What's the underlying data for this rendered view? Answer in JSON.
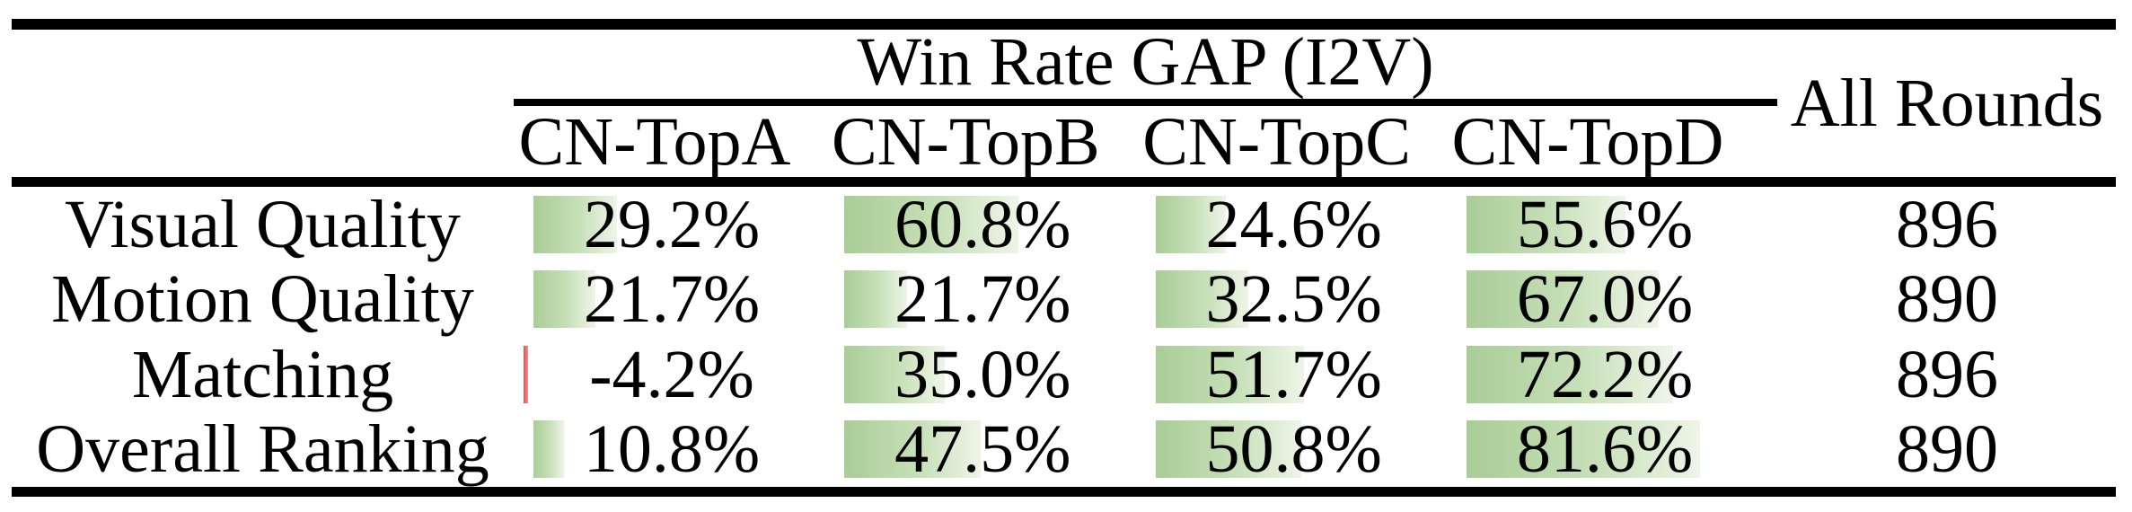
{
  "table": {
    "group_header": "Win Rate GAP (I2V)",
    "all_rounds_header": "All Rounds",
    "columns": [
      "CN-TopA",
      "CN-TopB",
      "CN-TopC",
      "CN-TopD"
    ],
    "rows": [
      {
        "label": "Visual Quality",
        "values": [
          29.2,
          60.8,
          24.6,
          55.6
        ],
        "display": [
          "29.2%",
          "60.8%",
          "24.6%",
          "55.6%"
        ],
        "all_rounds": "896"
      },
      {
        "label": "Motion Quality",
        "values": [
          21.7,
          21.7,
          32.5,
          67.0
        ],
        "display": [
          "21.7%",
          "21.7%",
          "32.5%",
          "67.0%"
        ],
        "all_rounds": "890"
      },
      {
        "label": "Matching",
        "values": [
          -4.2,
          35.0,
          51.7,
          72.2
        ],
        "display": [
          "-4.2%",
          "35.0%",
          "51.7%",
          "72.2%"
        ],
        "all_rounds": "896"
      },
      {
        "label": "Overall Ranking",
        "values": [
          10.8,
          47.5,
          50.8,
          81.6
        ],
        "display": [
          "10.8%",
          "47.5%",
          "50.8%",
          "81.6%"
        ],
        "all_rounds": "890"
      }
    ],
    "colors": {
      "bar_positive_start": "#a9cd97",
      "bar_positive_end": "#eef5e8",
      "bar_negative": "#f06060",
      "rule": "#000000",
      "text": "#000000"
    }
  },
  "chart_data": {
    "type": "table",
    "title": "Win Rate GAP (I2V)",
    "categories": [
      "Visual Quality",
      "Motion Quality",
      "Matching",
      "Overall Ranking"
    ],
    "series": [
      {
        "name": "CN-TopA",
        "values": [
          29.2,
          21.7,
          -4.2,
          10.8
        ]
      },
      {
        "name": "CN-TopB",
        "values": [
          60.8,
          21.7,
          35.0,
          47.5
        ]
      },
      {
        "name": "CN-TopC",
        "values": [
          24.6,
          32.5,
          51.7,
          50.8
        ]
      },
      {
        "name": "CN-TopD",
        "values": [
          55.6,
          67.0,
          72.2,
          81.6
        ]
      }
    ],
    "all_rounds": [
      896,
      890,
      896,
      890
    ],
    "unit": "%"
  }
}
